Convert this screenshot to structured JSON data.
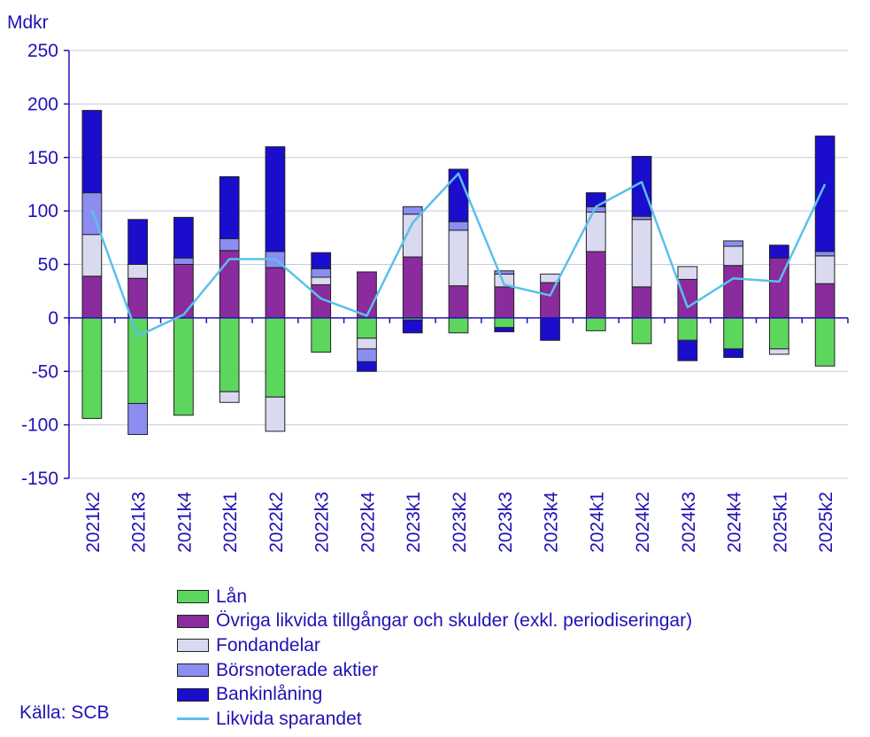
{
  "chart_data": {
    "type": "bar",
    "stacked": true,
    "unit_label": "Mdkr",
    "categories": [
      "2021k2",
      "2021k3",
      "2021k4",
      "2022k1",
      "2022k2",
      "2022k3",
      "2022k4",
      "2023k1",
      "2023k2",
      "2023k3",
      "2023k4",
      "2024k1",
      "2024k2",
      "2024k3",
      "2024k4",
      "2025k1",
      "2025k2"
    ],
    "ylim": [
      -150,
      250
    ],
    "yticks": [
      250,
      200,
      150,
      100,
      50,
      0,
      -50,
      -100,
      -150
    ],
    "ytick_labels": [
      "250",
      "200",
      "150",
      "100",
      "50",
      "0",
      "-50",
      "-100",
      "-150"
    ],
    "series": [
      {
        "name": "Lån",
        "color": "#5cd65c",
        "values": [
          -94,
          -80,
          -91,
          -69,
          -74,
          -32,
          -19,
          -2,
          -14,
          -9,
          0,
          -12,
          -24,
          -21,
          -29,
          -29,
          -45
        ]
      },
      {
        "name": "Övriga likvida tillgångar och skulder (exkl. periodiseringar)",
        "color": "#8a2b9e",
        "values": [
          39,
          37,
          50,
          63,
          47,
          31,
          43,
          57,
          30,
          29,
          33,
          62,
          29,
          36,
          49,
          56,
          32
        ]
      },
      {
        "name": "Fondandelar",
        "color": "#d9d9f0",
        "values": [
          39,
          13,
          0,
          -10,
          -32,
          7,
          -10,
          40,
          52,
          12,
          8,
          37,
          63,
          12,
          18,
          -5,
          26
        ]
      },
      {
        "name": "Börsnoterade aktier",
        "color": "#8b8ef0",
        "values": [
          39,
          -29,
          6,
          11,
          15,
          8,
          -12,
          7,
          8,
          3,
          0,
          5,
          3,
          0,
          5,
          0,
          4
        ]
      },
      {
        "name": "Bankinlåning",
        "color": "#1a0dcc",
        "values": [
          77,
          42,
          38,
          58,
          98,
          15,
          -9,
          -12,
          49,
          -4,
          -21,
          13,
          56,
          -19,
          -8,
          12,
          108
        ]
      }
    ],
    "line_series": {
      "name": "Likvida sparandet",
      "color": "#5bc0eb",
      "values": [
        101,
        -17,
        3,
        55,
        55,
        18,
        2,
        89,
        135,
        31,
        21,
        104,
        127,
        10,
        37,
        34,
        125
      ]
    },
    "legend_position": "bottom-center",
    "grid": "horizontal"
  },
  "legend": {
    "items": [
      {
        "label": "Lån",
        "color": "#5cd65c",
        "kind": "box"
      },
      {
        "label": "Övriga likvida tillgångar och skulder (exkl. periodiseringar)",
        "color": "#8a2b9e",
        "kind": "box"
      },
      {
        "label": "Fondandelar",
        "color": "#d9d9f0",
        "kind": "box"
      },
      {
        "label": "Börsnoterade aktier",
        "color": "#8b8ef0",
        "kind": "box"
      },
      {
        "label": "Bankinlåning",
        "color": "#1a0dcc",
        "kind": "box"
      },
      {
        "label": "Likvida sparandet",
        "color": "#5bc0eb",
        "kind": "line"
      }
    ]
  },
  "source": "Källa: SCB"
}
